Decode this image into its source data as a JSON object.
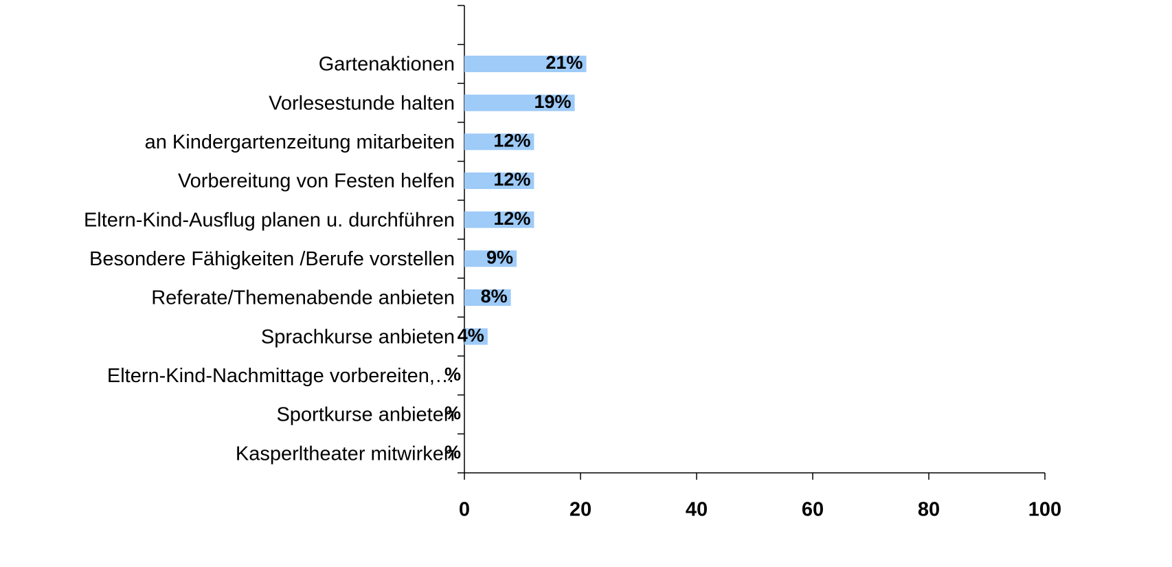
{
  "chart_data": {
    "type": "hbar",
    "categories": [
      null,
      "Gartenaktionen",
      "Vorlesestunde halten",
      "an Kindergartenzeitung mitarbeiten",
      "Vorbereitung von Festen helfen",
      "Eltern-Kind-Ausflug planen u. durchführen",
      "Besondere Fähigkeiten /Berufe vorstellen",
      "Referate/Themenabende anbieten",
      "Sprachkurse anbieten",
      "Eltern-Kind-Nachmittage vorbereiten,…",
      "Sportkurse anbieten",
      "Kasperltheater mitwirken"
    ],
    "values": [
      null,
      21,
      19,
      12,
      12,
      12,
      9,
      8,
      4,
      0,
      0,
      0
    ],
    "value_labels": [
      null,
      "21%",
      "19%",
      "12%",
      "12%",
      "12%",
      "9%",
      "8%",
      "4%",
      "%",
      "%",
      "%"
    ],
    "color": "#9ecbf8",
    "xlim": [
      0,
      100
    ],
    "xticks": [
      0,
      20,
      40,
      60,
      80,
      100
    ]
  }
}
